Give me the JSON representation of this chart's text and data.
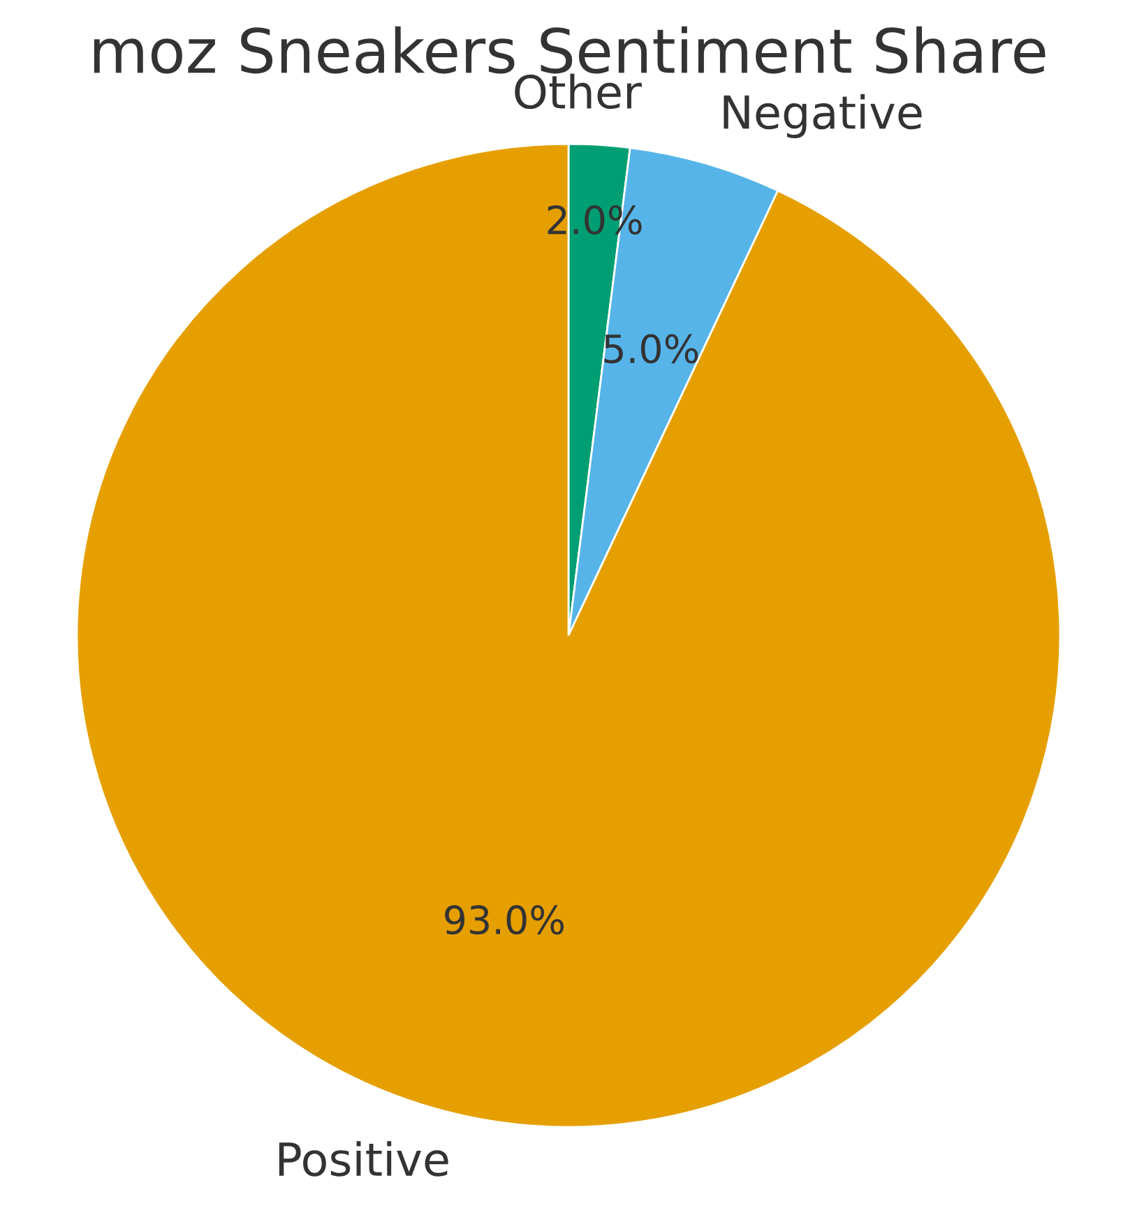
{
  "chart_data": {
    "type": "pie",
    "title": "moz Sneakers Sentiment Share",
    "categories": [
      "Other",
      "Negative",
      "Positive"
    ],
    "values": [
      2.0,
      5.0,
      93.0
    ],
    "value_labels": [
      "2.0%",
      "5.0%",
      "93.0%"
    ],
    "colors": [
      "#009e73",
      "#56b4e9",
      "#e69f00"
    ]
  }
}
